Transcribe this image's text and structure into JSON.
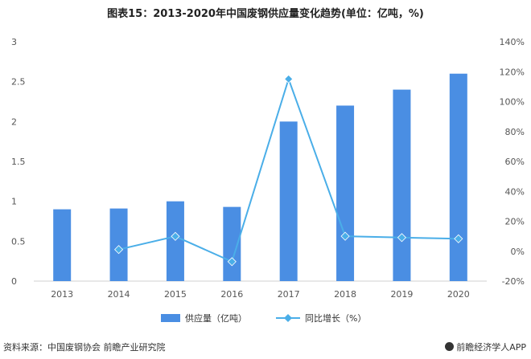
{
  "chart_data": {
    "title": "图表15：2013-2020年中国废钢供应量变化趋势(单位：亿吨，%)",
    "categories": [
      "2013",
      "2014",
      "2015",
      "2016",
      "2017",
      "2018",
      "2019",
      "2020"
    ],
    "series": [
      {
        "name": "供应量（亿吨）",
        "type": "bar",
        "axis": "left",
        "values": [
          0.9,
          0.91,
          1.0,
          0.93,
          2.0,
          2.2,
          2.4,
          2.6
        ]
      },
      {
        "name": "同比增长（%）",
        "type": "line",
        "axis": "right",
        "values": [
          null,
          1.1,
          9.9,
          -7.0,
          115.1,
          10.0,
          9.1,
          8.3
        ]
      }
    ],
    "left_axis": {
      "ylim": [
        0,
        3
      ],
      "ticks": [
        "0",
        "0.5",
        "1",
        "1.5",
        "2",
        "2.5",
        "3"
      ]
    },
    "right_axis": {
      "ylim": [
        -20,
        140
      ],
      "ticks": [
        "-20%",
        "0%",
        "20%",
        "40%",
        "60%",
        "80%",
        "100%",
        "120%",
        "140%"
      ]
    },
    "grid": false,
    "legend_position": "bottom",
    "colors": {
      "bar": "#4a8ee3",
      "line": "#4aaee8",
      "marker": "#4aaee8"
    }
  },
  "footer": {
    "source": "资料来源：中国废钢协会 前瞻产业研究院",
    "brand": "前瞻经济学人APP"
  },
  "watermark": "前瞻产业研究院"
}
